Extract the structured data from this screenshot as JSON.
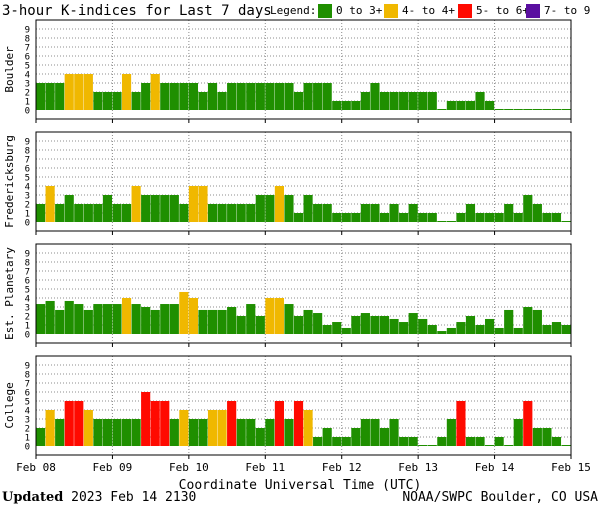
{
  "chart_data": {
    "type": "bar",
    "title": "3-hour K-indices for Last 7 days",
    "legend": {
      "label": "Legend:",
      "placement": "top-right",
      "items": [
        {
          "text": "0 to 3+",
          "color": "#1f8f00"
        },
        {
          "text": "4- to 4+",
          "color": "#f0b800"
        },
        {
          "text": "5- to 6+",
          "color": "#ff0a00"
        },
        {
          "text": "7- to 9",
          "color": "#5a0fa0"
        }
      ]
    },
    "colors": {
      "quiet": "#1f8f00",
      "active": "#f0b800",
      "storm": "#ff0a00",
      "severe": "#5a0fa0",
      "grid": "#8c8c8c"
    },
    "thresholds": {
      "active": 4,
      "storm": 5,
      "severe": 7
    },
    "xlabel": "Coordinate Universal Time (UTC)",
    "x_tick_labels": [
      "Feb 08",
      "Feb 09",
      "Feb 10",
      "Feb 11",
      "Feb 12",
      "Feb 13",
      "Feb 14",
      "Feb 15"
    ],
    "y_tick_labels": [
      "0",
      "1",
      "2",
      "3",
      "4",
      "5",
      "6",
      "7",
      "8",
      "9"
    ],
    "ylim": [
      0,
      9
    ],
    "grid": true,
    "panels": [
      {
        "name": "Boulder",
        "values": [
          3,
          3,
          3,
          4,
          4,
          4,
          2,
          2,
          2,
          4,
          2,
          3,
          4,
          3,
          3,
          3,
          3,
          2,
          3,
          2,
          3,
          3,
          3,
          3,
          3,
          3,
          3,
          2,
          3,
          3,
          3,
          1,
          1,
          1,
          2,
          3,
          2,
          2,
          2,
          2,
          2,
          2,
          0,
          1,
          1,
          1,
          2,
          1,
          0.1,
          0.1,
          0.1,
          0.1,
          0.1,
          0.1,
          0.1,
          0.1
        ]
      },
      {
        "name": "Fredericksburg",
        "values": [
          2,
          4,
          2,
          3,
          2,
          2,
          2,
          3,
          2,
          2,
          4,
          3,
          3,
          3,
          3,
          2,
          4,
          4,
          2,
          2,
          2,
          2,
          2,
          3,
          3,
          4,
          3,
          1,
          3,
          2,
          2,
          1,
          1,
          1,
          2,
          2,
          1,
          2,
          1,
          2,
          1,
          1,
          0.1,
          0.1,
          1,
          2,
          1,
          1,
          1,
          2,
          1,
          3,
          2,
          1,
          1,
          0.1
        ]
      },
      {
        "name": "Est. Planetary",
        "values": [
          3.33,
          3.67,
          2.67,
          3.67,
          3.33,
          2.67,
          3.33,
          3.33,
          3.33,
          4,
          3.33,
          3,
          2.67,
          3.33,
          3.33,
          4.67,
          4,
          2.67,
          2.67,
          2.67,
          3,
          2,
          3.33,
          2,
          4,
          4,
          3.33,
          2,
          2.67,
          2.33,
          1,
          1.33,
          0.67,
          2,
          2.33,
          2,
          2,
          1.67,
          1.33,
          2.33,
          1.67,
          1,
          0.33,
          0.67,
          1.33,
          2,
          1,
          1.67,
          0.67,
          2.67,
          0.67,
          3,
          2.67,
          1,
          1.33,
          1
        ]
      },
      {
        "name": "College",
        "values": [
          2,
          4,
          3,
          5,
          5,
          4,
          3,
          3,
          3,
          3,
          3,
          6,
          5,
          5,
          3,
          4,
          3,
          3,
          4,
          4,
          5,
          3,
          3,
          2,
          3,
          5,
          3,
          5,
          4,
          1,
          2,
          1,
          1,
          2,
          3,
          3,
          2,
          3,
          1,
          1,
          0.1,
          0.1,
          1,
          3,
          5,
          1,
          1,
          0.1,
          1,
          0.1,
          3,
          5,
          2,
          2,
          1,
          0.1
        ]
      }
    ]
  },
  "footer": {
    "updated_label": "Updated",
    "updated_value": "2023 Feb 14 2130",
    "source": "NOAA/SWPC Boulder, CO USA"
  }
}
